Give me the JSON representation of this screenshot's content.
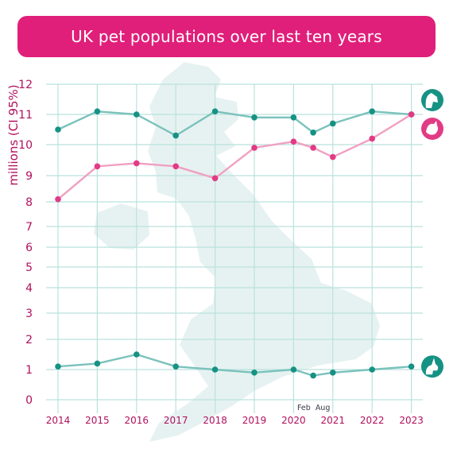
{
  "title": "UK pet populations over last ten years",
  "colors": {
    "title_bg": "#e01f7a",
    "title_text": "#ffffff",
    "axis_text": "#b0105e",
    "grid": "#b9e2de",
    "map": "#e6f2f1",
    "teal_dot": "#159284",
    "teal_line": "#7bc2bc",
    "pink_dot": "#e23b85",
    "pink_line": "#f0a0c2",
    "highlight_dot": "#14304a"
  },
  "background": "uk-map-silhouette",
  "icons": [
    "dog-icon",
    "cat-icon",
    "rabbit-icon"
  ],
  "chart_data": {
    "type": "line",
    "title": "UK pet populations over last ten years",
    "ylabel": "millions (CI 95%)",
    "xlabel": "",
    "x_ticks": [
      "2014",
      "2015",
      "2016",
      "2017",
      "2018",
      "2019",
      "2020",
      "2021",
      "2022",
      "2023"
    ],
    "x_annotations": [
      "Feb",
      "Aug"
    ],
    "y_ticks": [
      "0",
      "1",
      "2",
      "3",
      "4",
      "5",
      "6",
      "7",
      "8",
      "9",
      "10",
      "11",
      "12"
    ],
    "y_axis_note": "non-linear scale; 1-unit spacing wider between 8 and 12",
    "grid": true,
    "series": [
      {
        "icon": "dog-icon",
        "color": "#159284",
        "points": [
          {
            "x": "2014",
            "y": 10.5
          },
          {
            "x": "2015",
            "y": 11.1
          },
          {
            "x": "2016",
            "y": 11.0
          },
          {
            "x": "2017",
            "y": 10.3
          },
          {
            "x": "2018",
            "y": 11.1
          },
          {
            "x": "2019",
            "y": 10.9
          },
          {
            "x": "2020",
            "y": 10.9
          },
          {
            "x": "2020-08",
            "y": 10.4
          },
          {
            "x": "2021",
            "y": 10.7
          },
          {
            "x": "2022",
            "y": 11.1
          },
          {
            "x": "2023",
            "y": 11.0
          }
        ]
      },
      {
        "icon": "cat-icon",
        "color": "#e23b85",
        "points": [
          {
            "x": "2014",
            "y": 8.1
          },
          {
            "x": "2015",
            "y": 9.3
          },
          {
            "x": "2016",
            "y": 9.4
          },
          {
            "x": "2017",
            "y": 9.3
          },
          {
            "x": "2018",
            "y": 8.9
          },
          {
            "x": "2019",
            "y": 9.9
          },
          {
            "x": "2020",
            "y": 10.1
          },
          {
            "x": "2020-08",
            "y": 9.9
          },
          {
            "x": "2021",
            "y": 9.6
          },
          {
            "x": "2022",
            "y": 10.2
          },
          {
            "x": "2023",
            "y": 11.0
          }
        ]
      },
      {
        "icon": "rabbit-icon",
        "color": "#159284",
        "points": [
          {
            "x": "2014",
            "y": 1.1
          },
          {
            "x": "2015",
            "y": 1.2
          },
          {
            "x": "2016",
            "y": 1.5
          },
          {
            "x": "2017",
            "y": 1.1
          },
          {
            "x": "2018",
            "y": 1.0
          },
          {
            "x": "2019",
            "y": 0.9
          },
          {
            "x": "2020",
            "y": 1.0
          },
          {
            "x": "2020-08",
            "y": 0.8
          },
          {
            "x": "2021",
            "y": 0.9
          },
          {
            "x": "2022",
            "y": 1.0
          },
          {
            "x": "2023",
            "y": 1.1
          }
        ]
      }
    ]
  }
}
